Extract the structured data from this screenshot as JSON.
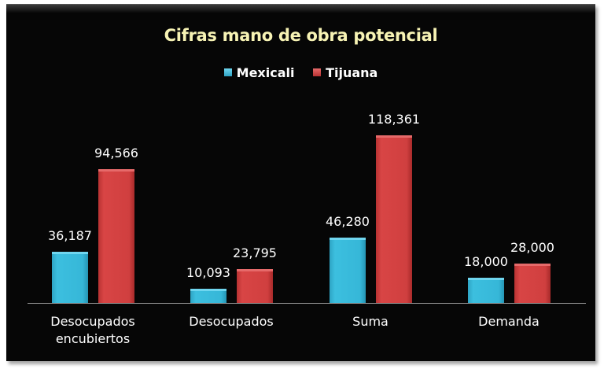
{
  "chart_data": {
    "type": "bar",
    "title": "Cifras mano de obra potencial",
    "categories": [
      "Desocupados encubiertos",
      "Desocupados",
      "Suma",
      "Demanda"
    ],
    "series": [
      {
        "name": "Mexicali",
        "color": "#3cbfdf",
        "values": [
          36187,
          10093,
          46280,
          18000
        ]
      },
      {
        "name": "Tijuana",
        "color": "#d84545",
        "values": [
          94566,
          23795,
          118361,
          28000
        ]
      }
    ],
    "data_labels": {
      "Mexicali": [
        "36,187",
        "10,093",
        "46,280",
        "18,000"
      ],
      "Tijuana": [
        "94,566",
        "23,795",
        "118,361",
        "28,000"
      ]
    },
    "xlabel": "",
    "ylabel": "",
    "grid": false,
    "legend_position": "top",
    "background": "#060606"
  },
  "labels": {
    "title": "Cifras mano de obra potencial",
    "legend": [
      "Mexicali",
      "Tijuana"
    ],
    "categories": [
      "Desocupados\nencubiertos",
      "Desocupados",
      "Suma",
      "Demanda"
    ]
  }
}
